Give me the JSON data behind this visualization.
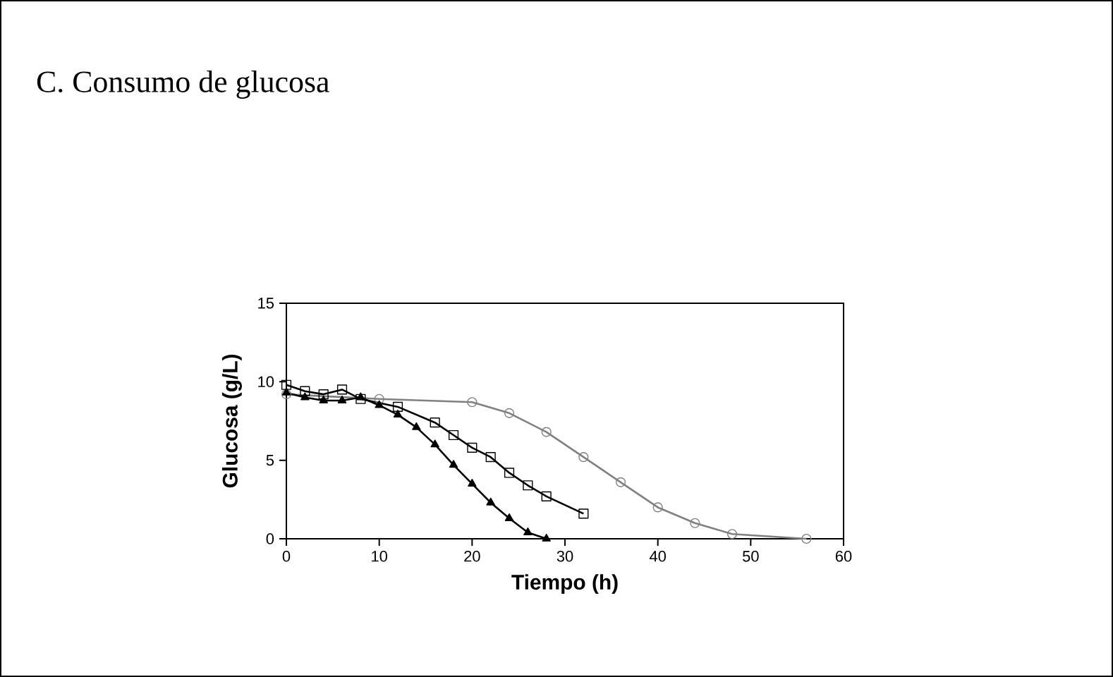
{
  "chart_data": {
    "type": "line",
    "title": "C. Consumo de glucosa",
    "xlabel": "Tiempo (h)",
    "ylabel": "Glucosa (g/L)",
    "xlim": [
      0,
      60
    ],
    "xticks": [
      0,
      10,
      20,
      30,
      40,
      50,
      60
    ],
    "ylim": [
      0,
      15
    ],
    "yticks": [
      0,
      5,
      10,
      15
    ],
    "series": [
      {
        "color": "#808080",
        "marker": "circle",
        "x": [
          0,
          10,
          20,
          24,
          28,
          32,
          36,
          40,
          44,
          48,
          56
        ],
        "values": [
          9.2,
          8.9,
          8.7,
          8.0,
          6.8,
          5.2,
          3.6,
          2.0,
          1.0,
          0.3,
          0.0
        ]
      },
      {
        "color": "#000000",
        "marker": "square",
        "x": [
          0,
          2,
          4,
          6,
          8,
          12,
          16,
          18,
          20,
          22,
          24,
          26,
          28,
          32
        ],
        "values": [
          9.8,
          9.4,
          9.2,
          9.5,
          8.9,
          8.4,
          7.4,
          6.6,
          5.8,
          5.2,
          4.2,
          3.4,
          2.7,
          1.6
        ]
      },
      {
        "color": "#000000",
        "marker": "triangle",
        "x": [
          0,
          2,
          4,
          6,
          8,
          10,
          12,
          14,
          16,
          18,
          20,
          22,
          24,
          26,
          28
        ],
        "values": [
          9.3,
          9.0,
          8.8,
          8.8,
          9.0,
          8.5,
          7.9,
          7.1,
          6.0,
          4.7,
          3.5,
          2.3,
          1.3,
          0.4,
          0.0
        ]
      }
    ]
  }
}
